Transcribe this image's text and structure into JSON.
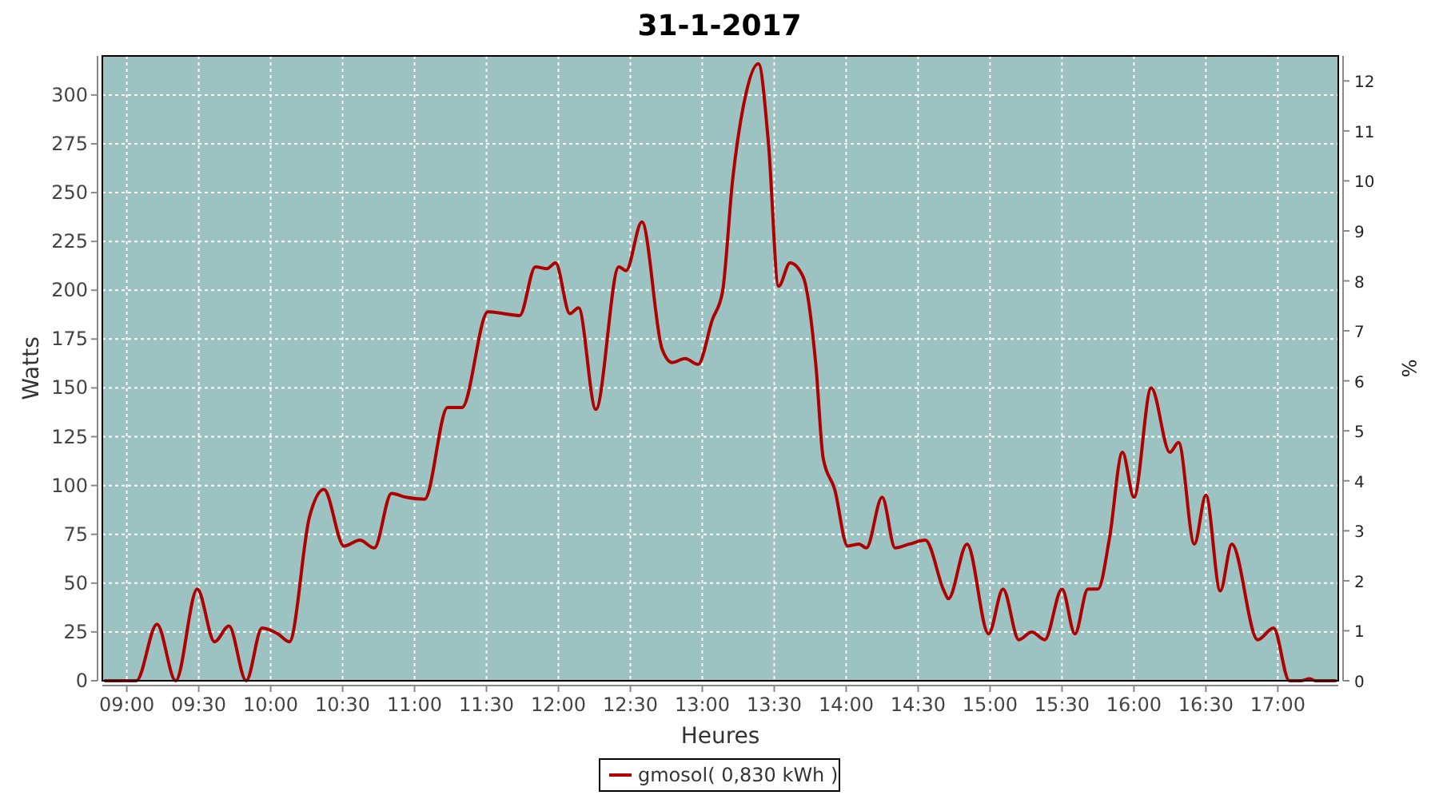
{
  "chart_data": {
    "type": "line",
    "title": "31-1-2017",
    "xlabel": "Heures",
    "ylabel": "Watts",
    "y2label": "%",
    "x": [
      8.85,
      9.0,
      9.067,
      9.21,
      9.34,
      9.49,
      9.61,
      9.71,
      9.83,
      9.94,
      10.05,
      10.13,
      10.27,
      10.37,
      10.51,
      10.62,
      10.72,
      10.84,
      10.94,
      11.07,
      11.23,
      11.33,
      11.51,
      11.62,
      11.73,
      11.84,
      11.92,
      11.98,
      12.08,
      12.14,
      12.26,
      12.42,
      12.47,
      12.58,
      12.72,
      12.79,
      12.88,
      12.97,
      13.07,
      13.14,
      13.21,
      13.29,
      13.39,
      13.46,
      13.53,
      13.61,
      13.7,
      13.79,
      13.84,
      13.92,
      14.01,
      14.09,
      14.14,
      14.25,
      14.34,
      14.44,
      14.55,
      14.68,
      14.71,
      14.84,
      14.99,
      15.09,
      15.2,
      15.29,
      15.38,
      15.5,
      15.59,
      15.68,
      15.75,
      15.83,
      15.92,
      16.0,
      16.12,
      16.25,
      16.31,
      16.42,
      16.5,
      16.6,
      16.68,
      16.86,
      16.97,
      17.08,
      17.16,
      17.22,
      17.26,
      17.4
    ],
    "series": [
      {
        "name": "gmosol( 0,830 kWh )",
        "color": "#b00000",
        "values": [
          0,
          0,
          0,
          29,
          0,
          47,
          20,
          28,
          0,
          27,
          24,
          20,
          84,
          98,
          69,
          72,
          68,
          96,
          94,
          93,
          140,
          140,
          189,
          188,
          187,
          212,
          211,
          214,
          188,
          191,
          139,
          212,
          210,
          235,
          170,
          163,
          165,
          162,
          185,
          199,
          256,
          296,
          316,
          275,
          202,
          214,
          207,
          161,
          114,
          98,
          69,
          70,
          68,
          94,
          68,
          70,
          72,
          46,
          42,
          70,
          24,
          47,
          21,
          25,
          21,
          47,
          24,
          47,
          47,
          73,
          117,
          94,
          150,
          117,
          122,
          70,
          95,
          46,
          70,
          21,
          27,
          0,
          0,
          1,
          0,
          0
        ]
      }
    ],
    "xlim": [
      8.83,
      17.42
    ],
    "xticks": [
      {
        "value": 9,
        "label": "09:00"
      },
      {
        "value": 9.5,
        "label": "09:30"
      },
      {
        "value": 10,
        "label": "10:00"
      },
      {
        "value": 10.5,
        "label": "10:30"
      },
      {
        "value": 11,
        "label": "11:00"
      },
      {
        "value": 11.5,
        "label": "11:30"
      },
      {
        "value": 12,
        "label": "12:00"
      },
      {
        "value": 12.5,
        "label": "12:30"
      },
      {
        "value": 13,
        "label": "13:00"
      },
      {
        "value": 13.5,
        "label": "13:30"
      },
      {
        "value": 14,
        "label": "14:00"
      },
      {
        "value": 14.5,
        "label": "14:30"
      },
      {
        "value": 15,
        "label": "15:00"
      },
      {
        "value": 15.5,
        "label": "15:30"
      },
      {
        "value": 16,
        "label": "16:00"
      },
      {
        "value": 16.5,
        "label": "16:30"
      },
      {
        "value": 17,
        "label": "17:00"
      }
    ],
    "ylim": [
      0,
      320
    ],
    "yticks": [
      0,
      25,
      50,
      75,
      100,
      125,
      150,
      175,
      200,
      225,
      250,
      275,
      300
    ],
    "y2lim": [
      0,
      12.5
    ],
    "y2ticks": [
      0,
      1,
      2,
      3,
      4,
      5,
      6,
      7,
      8,
      9,
      10,
      11,
      12
    ],
    "grid": true,
    "legend": "bottom",
    "marker": "none",
    "line_style": "solid"
  }
}
